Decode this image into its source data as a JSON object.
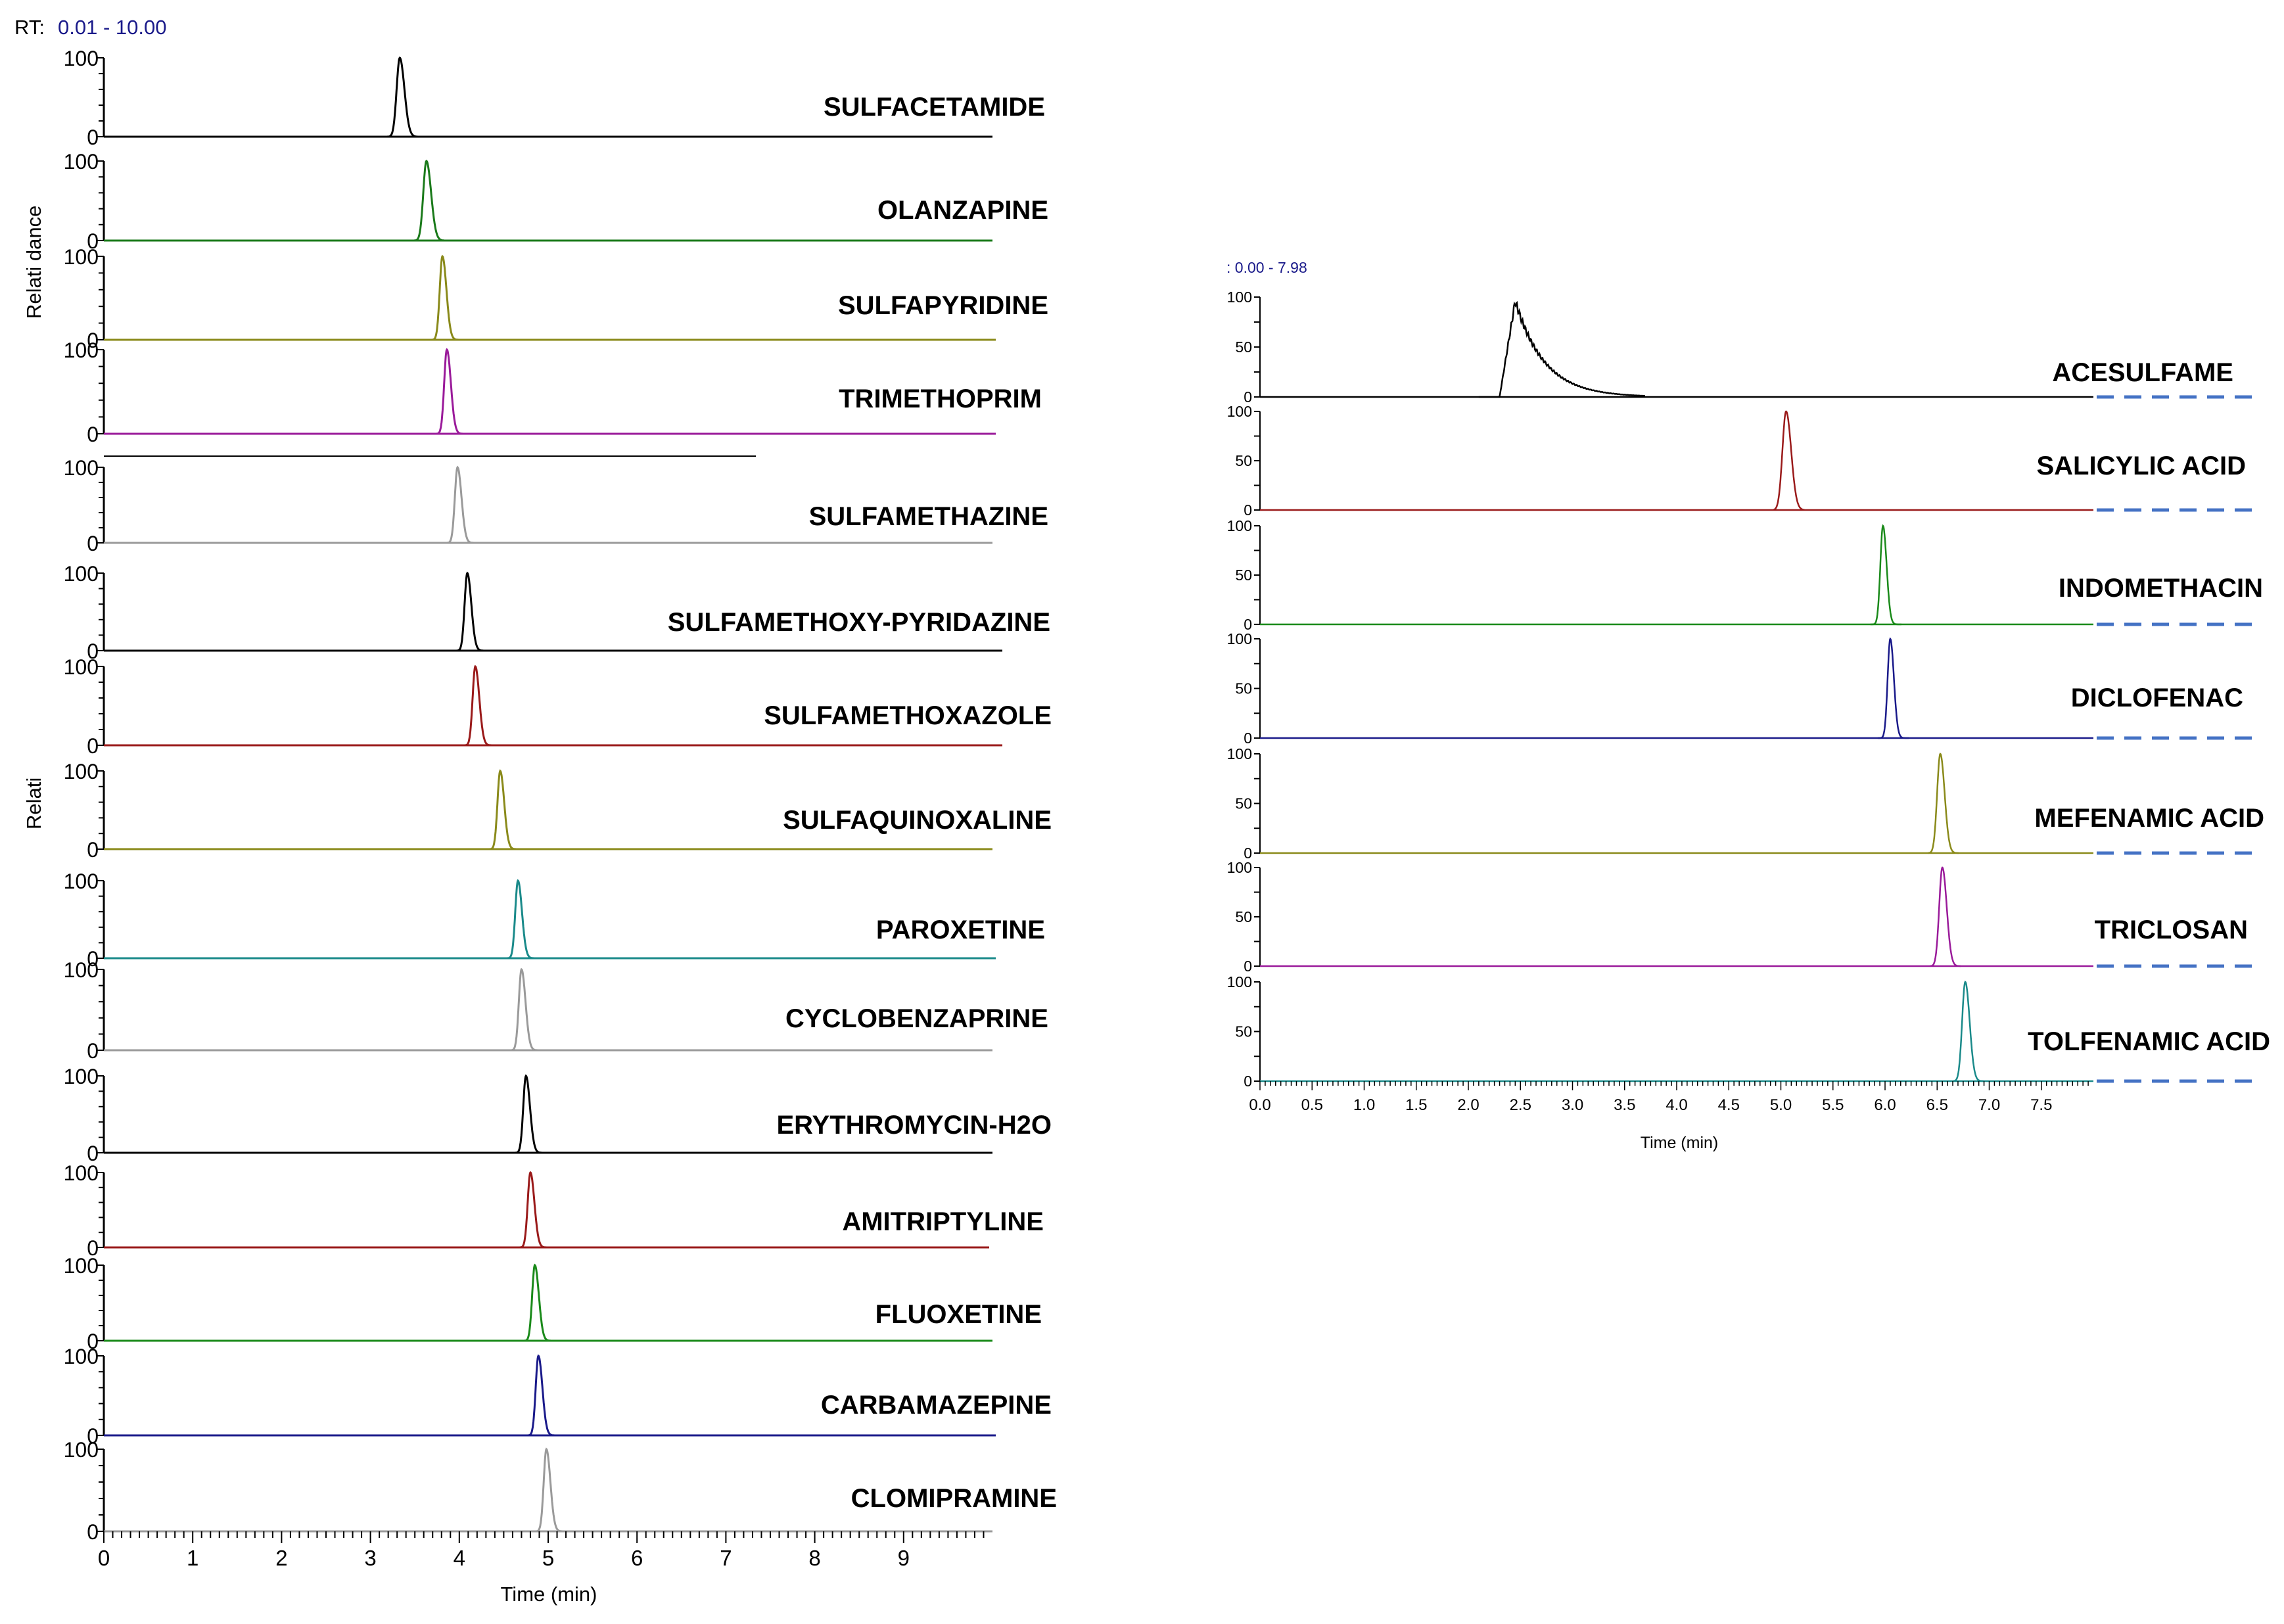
{
  "chart_data": [
    {
      "type": "line",
      "name": "left-chromatogram-stack",
      "rt_prefix": "RT:",
      "rt_range_text": "0.01 - 10.00",
      "ylabel_top": "Relati dance",
      "ylabel_bottom": "Relati",
      "xlabel": "Time (min)",
      "xlim": [
        0,
        10
      ],
      "xticks": [
        0,
        1,
        2,
        3,
        4,
        5,
        6,
        7,
        8,
        9
      ],
      "ylim": [
        0,
        100
      ],
      "series": [
        {
          "name": "SULFACETAMIDE",
          "color": "#000000",
          "peak_rt": 3.33,
          "peak_width": 0.035,
          "y_max": 100,
          "y_zero": 0
        },
        {
          "name": "OLANZAPINE",
          "color": "#1a7a1a",
          "peak_rt": 3.63,
          "peak_width": 0.035,
          "y_max": 100,
          "y_zero": 0
        },
        {
          "name": "SULFAPYRIDINE",
          "color": "#8a8a1a",
          "peak_rt": 3.81,
          "peak_width": 0.03,
          "y_max": 100,
          "y_zero": 0
        },
        {
          "name": "TRIMETHOPRIM",
          "color": "#9a1a9a",
          "peak_rt": 3.86,
          "peak_width": 0.03,
          "y_max": 100,
          "y_zero": 0
        },
        {
          "name": "SULFAMETHAZINE",
          "color": "#9a9a9a",
          "peak_rt": 3.98,
          "peak_width": 0.03,
          "y_max": 100,
          "y_zero": 0
        },
        {
          "name": "SULFAMETHOXY-PYRIDAZINE",
          "color": "#000000",
          "peak_rt": 4.09,
          "peak_width": 0.03,
          "y_max": 100,
          "y_zero": 0
        },
        {
          "name": "SULFAMETHOXAZOLE",
          "color": "#9a1a1a",
          "peak_rt": 4.18,
          "peak_width": 0.03,
          "y_max": 100,
          "y_zero": 0
        },
        {
          "name": "SULFAQUINOXALINE",
          "color": "#8a8a1a",
          "peak_rt": 4.46,
          "peak_width": 0.03,
          "y_max": 100,
          "y_zero": 0
        },
        {
          "name": "PAROXETINE",
          "color": "#1a8a8a",
          "peak_rt": 4.66,
          "peak_width": 0.03,
          "y_max": 100,
          "y_zero": 0
        },
        {
          "name": "CYCLOBENZAPRINE",
          "color": "#9a9a9a",
          "peak_rt": 4.7,
          "peak_width": 0.03,
          "y_max": 100,
          "y_zero": 0
        },
        {
          "name": "ERYTHROMYCIN-H2O",
          "color": "#000000",
          "peak_rt": 4.75,
          "peak_width": 0.03,
          "y_max": 100,
          "y_zero": 0
        },
        {
          "name": "AMITRIPTYLINE",
          "color": "#9a1a1a",
          "peak_rt": 4.8,
          "peak_width": 0.03,
          "y_max": 100,
          "y_zero": 0
        },
        {
          "name": "FLUOXETINE",
          "color": "#1a8a1a",
          "peak_rt": 4.85,
          "peak_width": 0.03,
          "y_max": 100,
          "y_zero": 0
        },
        {
          "name": "CARBAMAZEPINE",
          "color": "#1a1a8a",
          "peak_rt": 4.89,
          "peak_width": 0.03,
          "y_max": 100,
          "y_zero": 0
        },
        {
          "name": "CLOMIPRAMINE",
          "color": "#9a9a9a",
          "peak_rt": 4.98,
          "peak_width": 0.03,
          "y_max": 100,
          "y_zero": 0
        }
      ]
    },
    {
      "type": "line",
      "name": "right-chromatogram-stack",
      "rt_range_text": ": 0.00 - 7.98",
      "xlabel": "Time (min)",
      "xlim": [
        0,
        8
      ],
      "xticks": [
        0.0,
        0.5,
        1.0,
        1.5,
        2.0,
        2.5,
        3.0,
        3.5,
        4.0,
        4.5,
        5.0,
        5.5,
        6.0,
        6.5,
        7.0,
        7.5
      ],
      "xtick_labels": [
        "0.0",
        "0.5",
        "1.0",
        "1.5",
        "2.0",
        "2.5",
        "3.0",
        "3.5",
        "4.0",
        "4.5",
        "5.0",
        "5.5",
        "6.0",
        "6.5",
        "7.0",
        "7.5"
      ],
      "ylim": [
        0,
        100
      ],
      "dashed_line_color": "#4472c4",
      "series": [
        {
          "name": "ACESULFAME",
          "color": "#000000",
          "peak_rt": 2.45,
          "broad": true,
          "y_max": 100,
          "y_mid": 50,
          "y_zero": 0
        },
        {
          "name": "SALICYLIC ACID",
          "color": "#9a1a1a",
          "peak_rt": 5.05,
          "peak_width": 0.035,
          "y_max": 100,
          "y_mid": 50,
          "y_zero": 0
        },
        {
          "name": "INDOMETHACIN",
          "color": "#1a8a1a",
          "peak_rt": 5.98,
          "peak_width": 0.025,
          "y_max": 100,
          "y_mid": 50,
          "y_zero": 0
        },
        {
          "name": "DICLOFENAC",
          "color": "#1a1a8a",
          "peak_rt": 6.05,
          "peak_width": 0.025,
          "y_max": 100,
          "y_mid": 50,
          "y_zero": 0
        },
        {
          "name": "MEFENAMIC ACID",
          "color": "#8a8a1a",
          "peak_rt": 6.53,
          "peak_width": 0.03,
          "y_max": 100,
          "y_mid": 50,
          "y_zero": 0
        },
        {
          "name": "TRICLOSAN",
          "color": "#9a1a9a",
          "peak_rt": 6.55,
          "peak_width": 0.03,
          "y_max": 100,
          "y_mid": 50,
          "y_zero": 0
        },
        {
          "name": "TOLFENAMIC ACID",
          "color": "#1a8a8a",
          "peak_rt": 6.77,
          "peak_width": 0.03,
          "y_max": 100,
          "y_mid": 50,
          "y_zero": 0
        }
      ]
    }
  ]
}
